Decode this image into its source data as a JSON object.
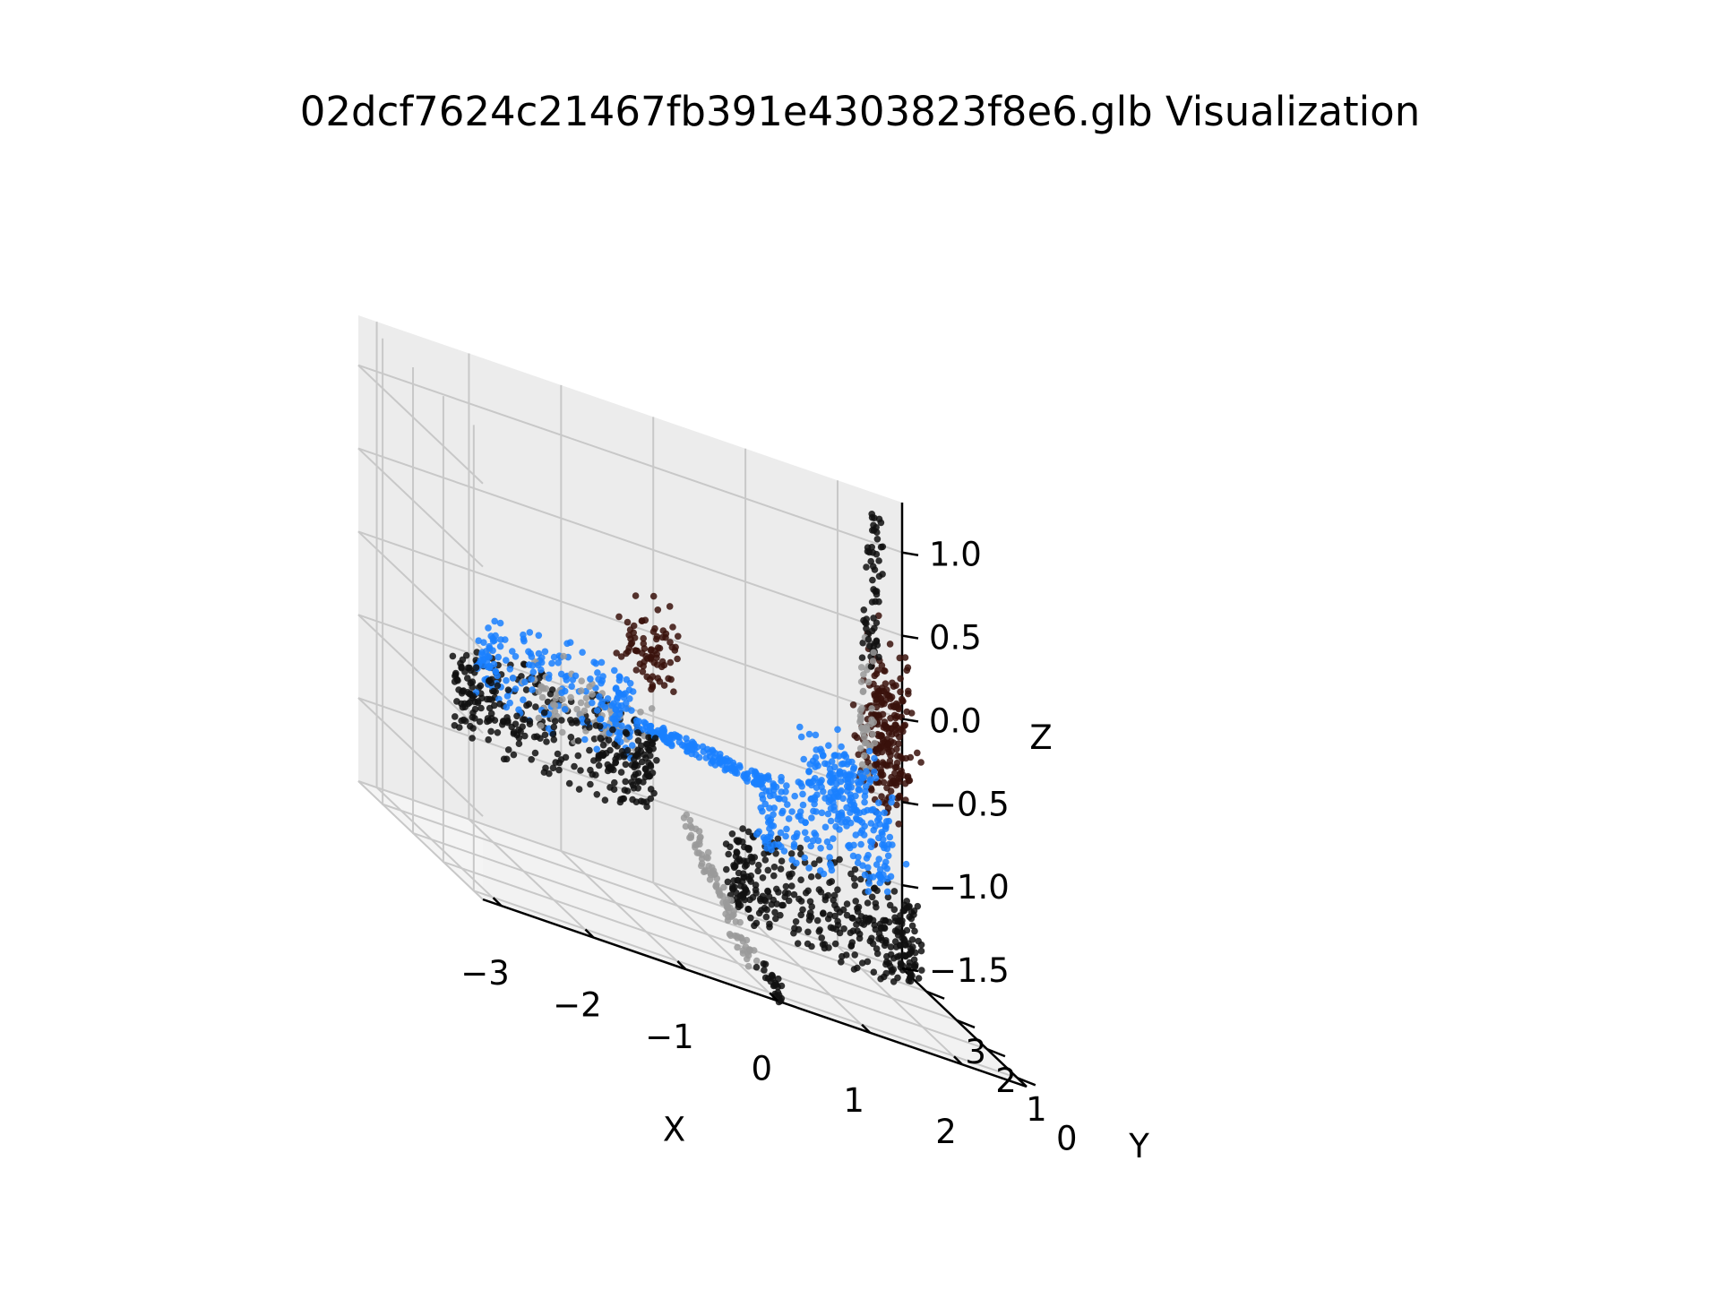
{
  "chart_data": {
    "type": "scatter",
    "title": "02dcf7624c21467fb391e4303823f8e6.glb Visualization",
    "xlabel": "X",
    "ylabel": "Y",
    "zlabel": "Z",
    "xlim": [
      -3.2,
      2.7
    ],
    "ylim": [
      -0.3,
      3.8
    ],
    "zlim": [
      -1.5,
      1.3
    ],
    "x_ticks": [
      -3,
      -2,
      -1,
      0,
      1,
      2
    ],
    "x_tick_labels": [
      "−3",
      "−2",
      "−1",
      "0",
      "1",
      "2"
    ],
    "y_ticks": [
      0,
      1,
      2,
      3
    ],
    "y_tick_labels": [
      "0",
      "1",
      "2",
      "3"
    ],
    "z_ticks": [
      -1.5,
      -1.0,
      -0.5,
      0.0,
      0.5,
      1.0
    ],
    "z_tick_labels": [
      "−1.5",
      "−1.0",
      "−0.5",
      "0.0",
      "0.5",
      "1.0"
    ],
    "grid": true,
    "series": [
      {
        "color": "#111111",
        "parts": [
          {
            "shape": "ring",
            "center": [
              -1.6,
              2.2,
              -0.6
            ],
            "radius": 1.05,
            "count": 340
          },
          {
            "shape": "ring",
            "center": [
              1.0,
              1.2,
              -1.0
            ],
            "radius": 1.0,
            "count": 380
          },
          {
            "shape": "line",
            "from": [
              2.05,
              2.9,
              0.35
            ],
            "to": [
              2.15,
              3.0,
              1.25
            ],
            "count": 60
          },
          {
            "shape": "line",
            "from": [
              0.1,
              0.6,
              -1.4
            ],
            "to": [
              0.3,
              0.4,
              -1.55
            ],
            "count": 25
          }
        ]
      },
      {
        "color": "#1a80ff",
        "parts": [
          {
            "shape": "ring",
            "center": [
              -1.6,
              2.2,
              -0.35
            ],
            "radius": 0.8,
            "count": 200
          },
          {
            "shape": "ring",
            "center": [
              1.0,
              1.2,
              -0.55
            ],
            "radius": 0.7,
            "count": 180
          },
          {
            "shape": "line",
            "from": [
              -0.8,
              1.8,
              -0.35
            ],
            "to": [
              0.6,
              1.8,
              -0.45
            ],
            "count": 140
          },
          {
            "shape": "blob",
            "center": [
              1.6,
              2.4,
              -0.35
            ],
            "spread": [
              0.5,
              0.4,
              0.25
            ],
            "count": 160
          }
        ]
      },
      {
        "color": "#9a9a9a",
        "parts": [
          {
            "shape": "line",
            "from": [
              -0.4,
              1.6,
              -0.8
            ],
            "to": [
              0.1,
              0.8,
              -1.45
            ],
            "count": 90
          },
          {
            "shape": "line",
            "from": [
              2.0,
              2.9,
              -0.3
            ],
            "to": [
              2.05,
              2.9,
              0.55
            ],
            "count": 45
          },
          {
            "shape": "blob",
            "center": [
              -1.2,
              2.4,
              -0.45
            ],
            "spread": [
              0.7,
              0.6,
              0.2
            ],
            "count": 80
          }
        ]
      },
      {
        "color": "#3a120c",
        "parts": [
          {
            "shape": "blob",
            "center": [
              2.3,
              3.1,
              -0.05
            ],
            "spread": [
              0.25,
              0.35,
              0.5
            ],
            "count": 240
          },
          {
            "shape": "blob",
            "center": [
              -0.3,
              2.9,
              0.0
            ],
            "spread": [
              0.3,
              0.25,
              0.25
            ],
            "count": 80
          }
        ]
      }
    ]
  }
}
